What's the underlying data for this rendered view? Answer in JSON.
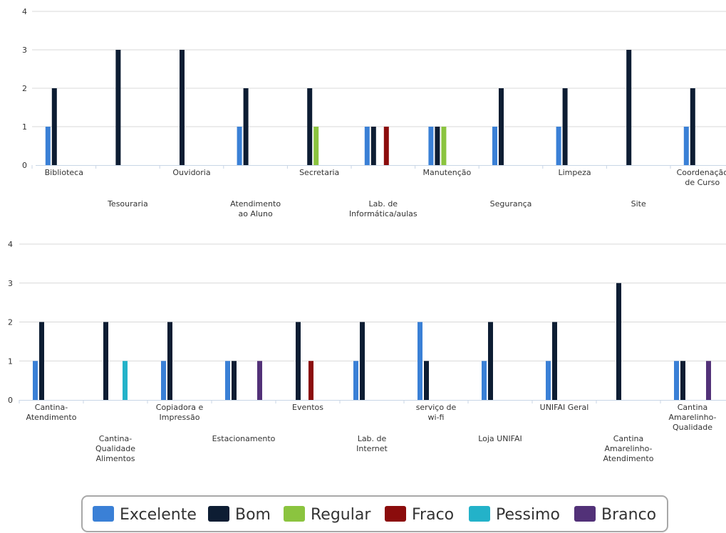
{
  "colors": {
    "Excelente": "#3a80d6",
    "Bom": "#0d1d33",
    "Regular": "#8bc43f",
    "Fraco": "#8b0c0c",
    "Pessimo": "#23b2c9",
    "Branco": "#523178"
  },
  "legend": {
    "items": [
      {
        "name": "Excelente",
        "label": "Excelente"
      },
      {
        "name": "Bom",
        "label": "Bom"
      },
      {
        "name": "Regular",
        "label": "Regular"
      },
      {
        "name": "Fraco",
        "label": "Fraco"
      },
      {
        "name": "Pessimo",
        "label": "Pessimo"
      },
      {
        "name": "Branco",
        "label": "Branco"
      }
    ]
  },
  "chart_data": [
    {
      "type": "bar",
      "ylim": [
        0,
        4
      ],
      "yticks": [
        "0",
        "1",
        "2",
        "3",
        "4"
      ],
      "categories": [
        {
          "lines": [
            "Biblioteca"
          ]
        },
        {
          "lines": [
            "Tesouraria"
          ]
        },
        {
          "lines": [
            "Ouvidoria"
          ]
        },
        {
          "lines": [
            "Atendimento",
            "ao Aluno"
          ]
        },
        {
          "lines": [
            "Secretaria"
          ]
        },
        {
          "lines": [
            "Lab. de",
            "Informática/aulas"
          ]
        },
        {
          "lines": [
            "Manutenção"
          ]
        },
        {
          "lines": [
            "Segurança"
          ]
        },
        {
          "lines": [
            "Limpeza"
          ]
        },
        {
          "lines": [
            "Site"
          ]
        },
        {
          "lines": [
            "Coordenação",
            "de Curso"
          ]
        }
      ],
      "series": [
        {
          "name": "Excelente",
          "values": [
            1,
            0,
            0,
            1,
            0,
            1,
            1,
            1,
            1,
            0,
            1
          ]
        },
        {
          "name": "Bom",
          "values": [
            2,
            3,
            3,
            2,
            2,
            1,
            1,
            2,
            2,
            3,
            2
          ]
        },
        {
          "name": "Regular",
          "values": [
            0,
            0,
            0,
            0,
            1,
            0,
            1,
            0,
            0,
            0,
            0
          ]
        },
        {
          "name": "Fraco",
          "values": [
            0,
            0,
            0,
            0,
            0,
            1,
            0,
            0,
            0,
            0,
            0
          ]
        },
        {
          "name": "Pessimo",
          "values": [
            0,
            0,
            0,
            0,
            0,
            0,
            0,
            0,
            0,
            0,
            0
          ]
        },
        {
          "name": "Branco",
          "values": [
            0,
            0,
            0,
            0,
            0,
            0,
            0,
            0,
            0,
            0,
            0
          ]
        }
      ]
    },
    {
      "type": "bar",
      "ylim": [
        0,
        4
      ],
      "yticks": [
        "0",
        "1",
        "2",
        "3",
        "4"
      ],
      "categories": [
        {
          "lines": [
            "Cantina-",
            "Atendimento"
          ]
        },
        {
          "lines": [
            "Cantina-",
            "Qualidade",
            "Alimentos"
          ]
        },
        {
          "lines": [
            "Copiadora e",
            "Impressão"
          ]
        },
        {
          "lines": [
            "Estacionamento"
          ]
        },
        {
          "lines": [
            "Eventos"
          ]
        },
        {
          "lines": [
            "Lab. de",
            "Internet"
          ]
        },
        {
          "lines": [
            "serviço de",
            "wi-fi"
          ]
        },
        {
          "lines": [
            "Loja UNIFAI"
          ]
        },
        {
          "lines": [
            "UNIFAI Geral"
          ]
        },
        {
          "lines": [
            "Cantina",
            "Amarelinho-",
            "Atendimento"
          ]
        },
        {
          "lines": [
            "Cantina",
            "Amarelinho-",
            "Qualidade"
          ]
        }
      ],
      "series": [
        {
          "name": "Excelente",
          "values": [
            1,
            0,
            1,
            1,
            0,
            1,
            2,
            1,
            1,
            0,
            1
          ]
        },
        {
          "name": "Bom",
          "values": [
            2,
            2,
            2,
            1,
            2,
            2,
            1,
            2,
            2,
            3,
            1
          ]
        },
        {
          "name": "Regular",
          "values": [
            0,
            0,
            0,
            0,
            0,
            0,
            0,
            0,
            0,
            0,
            0
          ]
        },
        {
          "name": "Fraco",
          "values": [
            0,
            0,
            0,
            0,
            1,
            0,
            0,
            0,
            0,
            0,
            0
          ]
        },
        {
          "name": "Pessimo",
          "values": [
            0,
            1,
            0,
            0,
            0,
            0,
            0,
            0,
            0,
            0,
            0
          ]
        },
        {
          "name": "Branco",
          "values": [
            0,
            0,
            0,
            1,
            0,
            0,
            0,
            0,
            0,
            0,
            1
          ]
        }
      ]
    }
  ]
}
